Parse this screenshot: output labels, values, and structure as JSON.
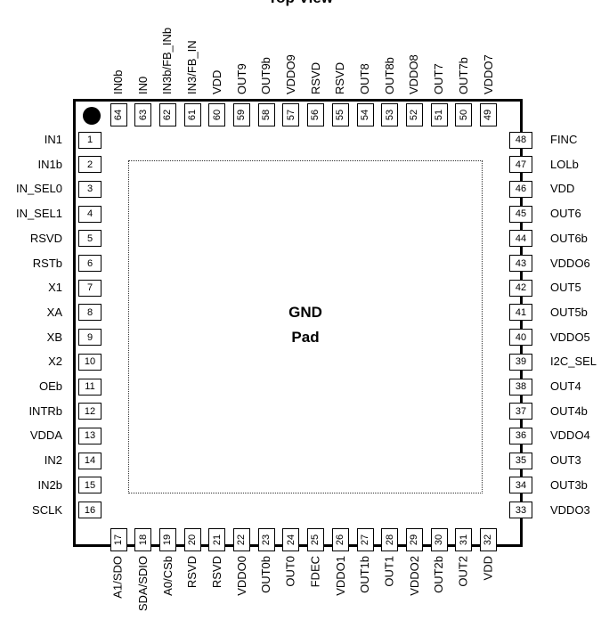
{
  "title": "Top View",
  "center_label": [
    "GND",
    "Pad"
  ],
  "pins_left": [
    {
      "num": "1",
      "name": "IN1"
    },
    {
      "num": "2",
      "name": "IN1b"
    },
    {
      "num": "3",
      "name": "IN_SEL0"
    },
    {
      "num": "4",
      "name": "IN_SEL1"
    },
    {
      "num": "5",
      "name": "RSVD"
    },
    {
      "num": "6",
      "name": "RSTb"
    },
    {
      "num": "7",
      "name": "X1"
    },
    {
      "num": "8",
      "name": "XA"
    },
    {
      "num": "9",
      "name": "XB"
    },
    {
      "num": "10",
      "name": "X2"
    },
    {
      "num": "11",
      "name": "OEb"
    },
    {
      "num": "12",
      "name": "INTRb"
    },
    {
      "num": "13",
      "name": "VDDA"
    },
    {
      "num": "14",
      "name": "IN2"
    },
    {
      "num": "15",
      "name": "IN2b"
    },
    {
      "num": "16",
      "name": "SCLK"
    }
  ],
  "pins_bottom": [
    {
      "num": "17",
      "name": "A1/SDO"
    },
    {
      "num": "18",
      "name": "SDA/SDIO"
    },
    {
      "num": "19",
      "name": "A0/CSb"
    },
    {
      "num": "20",
      "name": "RSVD"
    },
    {
      "num": "21",
      "name": "RSVD"
    },
    {
      "num": "22",
      "name": "VDDO0"
    },
    {
      "num": "23",
      "name": "OUT0b"
    },
    {
      "num": "24",
      "name": "OUT0"
    },
    {
      "num": "25",
      "name": "FDEC"
    },
    {
      "num": "26",
      "name": "VDDO1"
    },
    {
      "num": "27",
      "name": "OUT1b"
    },
    {
      "num": "28",
      "name": "OUT1"
    },
    {
      "num": "29",
      "name": "VDDO2"
    },
    {
      "num": "30",
      "name": "OUT2b"
    },
    {
      "num": "31",
      "name": "OUT2"
    },
    {
      "num": "32",
      "name": "VDD"
    }
  ],
  "pins_right": [
    {
      "num": "48",
      "name": "FINC"
    },
    {
      "num": "47",
      "name": "LOLb"
    },
    {
      "num": "46",
      "name": "VDD"
    },
    {
      "num": "45",
      "name": "OUT6"
    },
    {
      "num": "44",
      "name": "OUT6b"
    },
    {
      "num": "43",
      "name": "VDDO6"
    },
    {
      "num": "42",
      "name": "OUT5"
    },
    {
      "num": "41",
      "name": "OUT5b"
    },
    {
      "num": "40",
      "name": "VDDO5"
    },
    {
      "num": "39",
      "name": "I2C_SEL"
    },
    {
      "num": "38",
      "name": "OUT4"
    },
    {
      "num": "37",
      "name": "OUT4b"
    },
    {
      "num": "36",
      "name": "VDDO4"
    },
    {
      "num": "35",
      "name": "OUT3"
    },
    {
      "num": "34",
      "name": "OUT3b"
    },
    {
      "num": "33",
      "name": "VDDO3"
    }
  ],
  "pins_top": [
    {
      "num": "64",
      "name": "IN0b"
    },
    {
      "num": "63",
      "name": "IN0"
    },
    {
      "num": "62",
      "name": "IN3b/FB_INb"
    },
    {
      "num": "61",
      "name": "IN3/FB_IN"
    },
    {
      "num": "60",
      "name": "VDD"
    },
    {
      "num": "59",
      "name": "OUT9"
    },
    {
      "num": "58",
      "name": "OUT9b"
    },
    {
      "num": "57",
      "name": "VDDO9"
    },
    {
      "num": "56",
      "name": "RSVD"
    },
    {
      "num": "55",
      "name": "RSVD"
    },
    {
      "num": "54",
      "name": "OUT8"
    },
    {
      "num": "53",
      "name": "OUT8b"
    },
    {
      "num": "52",
      "name": "VDDO8"
    },
    {
      "num": "51",
      "name": "OUT7"
    },
    {
      "num": "50",
      "name": "OUT7b"
    },
    {
      "num": "49",
      "name": "VDDO7"
    }
  ]
}
